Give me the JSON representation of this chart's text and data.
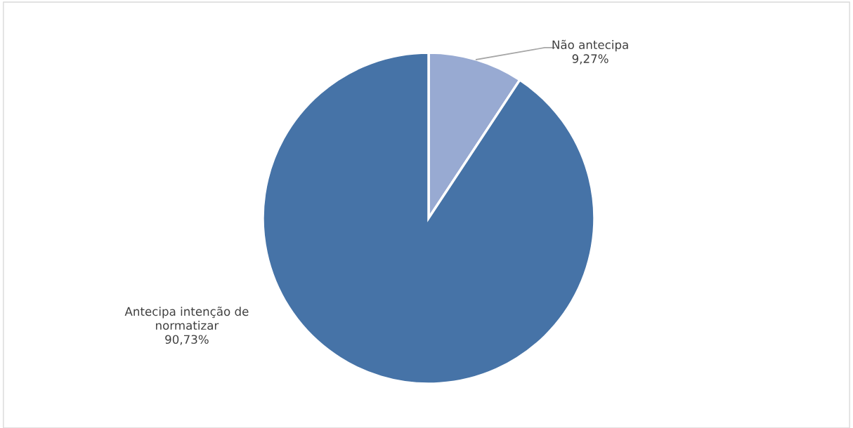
{
  "chart_data": {
    "type": "pie",
    "categories": [
      "Não antecipa",
      "Antecipa intenção de normatizar"
    ],
    "values": [
      9.27,
      90.73
    ],
    "colors": [
      "#98aad2",
      "#4673a7"
    ],
    "value_labels": [
      "9,27%",
      "90,73%"
    ],
    "legend": false
  }
}
